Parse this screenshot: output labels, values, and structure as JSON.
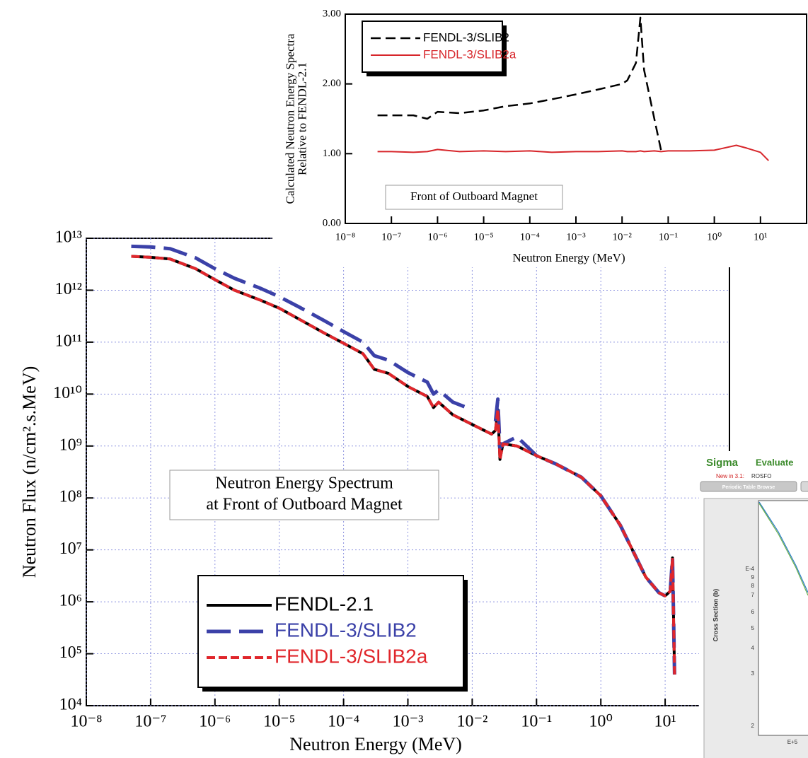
{
  "chart_data": [
    {
      "type": "line",
      "log_x": true,
      "log_y": false,
      "ylabel": [
        "Calculated Neutron Energy Spectra",
        "Relative to FENDL-2.1"
      ],
      "xlabel": "Neutron Energy (MeV)",
      "annotation": [
        "Front of Outboard Magnet"
      ],
      "legend": "upper-left",
      "grid": false,
      "xlim": [
        1e-08,
        100
      ],
      "ylim": [
        0,
        3
      ],
      "xticks": [
        {
          "value": 1e-08,
          "label": "10⁻⁸"
        },
        {
          "value": 1e-07,
          "label": "10⁻⁷"
        },
        {
          "value": 1e-06,
          "label": "10⁻⁶"
        },
        {
          "value": 1e-05,
          "label": "10⁻⁵"
        },
        {
          "value": 0.0001,
          "label": "10⁻⁴"
        },
        {
          "value": 0.001,
          "label": "10⁻³"
        },
        {
          "value": 0.01,
          "label": "10⁻²"
        },
        {
          "value": 0.1,
          "label": "10⁻¹"
        },
        {
          "value": 1,
          "label": "10⁰"
        },
        {
          "value": 10,
          "label": "10¹"
        }
      ],
      "yticks": [
        {
          "value": 0,
          "label": "0.00"
        },
        {
          "value": 1,
          "label": "1.00"
        },
        {
          "value": 2,
          "label": "2.00"
        },
        {
          "value": 3,
          "label": "3.00"
        }
      ],
      "x": [
        5e-08,
        1e-07,
        3e-07,
        6e-07,
        1e-06,
        3e-06,
        1e-05,
        3e-05,
        0.0001,
        0.0003,
        0.001,
        0.003,
        0.01,
        0.013,
        0.02,
        0.025,
        0.03,
        0.05,
        0.07,
        0.1,
        0.3,
        1,
        3,
        5,
        10,
        15
      ],
      "series": [
        {
          "name": "FENDL-3/SLIB2",
          "color": "#000000",
          "dash": "dashed",
          "values": [
            1.55,
            1.55,
            1.55,
            1.5,
            1.6,
            1.58,
            1.62,
            1.68,
            1.72,
            1.78,
            1.85,
            1.92,
            2.0,
            2.05,
            2.3,
            2.95,
            2.2,
            1.5,
            1.05,
            null,
            null,
            null,
            null,
            null,
            null,
            null
          ]
        },
        {
          "name": "FENDL-3/SLIB2a",
          "color": "#d7262b",
          "dash": "solid",
          "values": [
            1.03,
            1.03,
            1.02,
            1.03,
            1.06,
            1.03,
            1.04,
            1.03,
            1.04,
            1.02,
            1.03,
            1.03,
            1.04,
            1.03,
            1.03,
            1.04,
            1.03,
            1.04,
            1.03,
            1.04,
            1.04,
            1.05,
            1.12,
            1.08,
            1.02,
            0.9
          ]
        }
      ]
    },
    {
      "type": "line",
      "log_x": true,
      "log_y": true,
      "ylabel": [
        "Neutron Flux (n/cm².s.MeV)"
      ],
      "xlabel": "Neutron Energy (MeV)",
      "annotation": [
        "Neutron Energy Spectrum",
        "at Front of Outboard Magnet"
      ],
      "legend": "lower-left",
      "grid": true,
      "xlim": [
        1e-08,
        100
      ],
      "ylim": [
        10000.0,
        10000000000000.0
      ],
      "xticks": [
        {
          "value": 1e-08,
          "label": "10⁻⁸"
        },
        {
          "value": 1e-07,
          "label": "10⁻⁷"
        },
        {
          "value": 1e-06,
          "label": "10⁻⁶"
        },
        {
          "value": 1e-05,
          "label": "10⁻⁵"
        },
        {
          "value": 0.0001,
          "label": "10⁻⁴"
        },
        {
          "value": 0.001,
          "label": "10⁻³"
        },
        {
          "value": 0.01,
          "label": "10⁻²"
        },
        {
          "value": 0.1,
          "label": "10⁻¹"
        },
        {
          "value": 1,
          "label": "10⁰"
        },
        {
          "value": 10,
          "label": "10¹"
        }
      ],
      "yticks": [
        {
          "value": 10000.0,
          "label": "10⁴"
        },
        {
          "value": 100000.0,
          "label": "10⁵"
        },
        {
          "value": 1000000.0,
          "label": "10⁶"
        },
        {
          "value": 10000000.0,
          "label": "10⁷"
        },
        {
          "value": 100000000.0,
          "label": "10⁸"
        },
        {
          "value": 1000000000.0,
          "label": "10⁹"
        },
        {
          "value": 10000000000.0,
          "label": "10¹⁰"
        },
        {
          "value": 100000000000.0,
          "label": "10¹¹"
        },
        {
          "value": 1000000000000.0,
          "label": "10¹²"
        },
        {
          "value": 10000000000000.0,
          "label": "10¹³"
        }
      ],
      "x": [
        5e-08,
        1e-07,
        2e-07,
        5e-07,
        1e-06,
        2e-06,
        5e-06,
        1e-05,
        2e-05,
        5e-05,
        0.0001,
        0.0002,
        0.0003,
        0.0005,
        0.001,
        0.002,
        0.0025,
        0.003,
        0.005,
        0.01,
        0.02,
        0.023,
        0.025,
        0.027,
        0.03,
        0.05,
        0.1,
        0.2,
        0.5,
        1,
        2,
        5,
        8,
        10,
        12,
        13,
        14
      ],
      "series": [
        {
          "name": "FENDL-2.1",
          "color": "#000000",
          "dash": "solid",
          "values": [
            4500000000000.0,
            4300000000000.0,
            4000000000000.0,
            2600000000000.0,
            1600000000000.0,
            1000000000000.0,
            650000000000.0,
            450000000000.0,
            280000000000.0,
            150000000000.0,
            95000000000.0,
            60000000000.0,
            30000000000.0,
            25000000000.0,
            14000000000.0,
            9000000000.0,
            5500000000.0,
            7000000000.0,
            4000000000.0,
            2600000000.0,
            1700000000.0,
            2000000000.0,
            5000000000.0,
            550000000.0,
            1100000000.0,
            1000000000.0,
            650000000.0,
            450000000.0,
            250000000.0,
            110000000.0,
            30000000.0,
            3000000.0,
            1500000.0,
            1300000.0,
            1600000.0,
            7000000.0,
            40000.0
          ]
        },
        {
          "name": "FENDL-3/SLIB2",
          "color": "#3b41a8",
          "dash": "long-dash",
          "values": [
            7000000000000.0,
            6800000000000.0,
            6300000000000.0,
            4200000000000.0,
            2600000000000.0,
            1700000000000.0,
            1100000000000.0,
            750000000000.0,
            480000000000.0,
            260000000000.0,
            160000000000.0,
            100000000000.0,
            55000000000.0,
            45000000000.0,
            26000000000.0,
            17000000000.0,
            10000000000.0,
            12000000000.0,
            7000000000.0,
            5000000000.0,
            null,
            3000000000.0,
            8000000000.0,
            900000000.0,
            1100000000.0,
            1500000000.0,
            650000000.0,
            450000000.0,
            250000000.0,
            110000000.0,
            30000000.0,
            3000000.0,
            1500000.0,
            1300000.0,
            1600000.0,
            7000000.0,
            40000.0
          ]
        },
        {
          "name": "FENDL-3/SLIB2a",
          "color": "#e0262b",
          "dash": "short-dash",
          "values": [
            4500000000000.0,
            4300000000000.0,
            4000000000000.0,
            2600000000000.0,
            1600000000000.0,
            1000000000000.0,
            650000000000.0,
            450000000000.0,
            280000000000.0,
            150000000000.0,
            95000000000.0,
            60000000000.0,
            30000000000.0,
            25000000000.0,
            14000000000.0,
            9000000000.0,
            5500000000.0,
            7000000000.0,
            4000000000.0,
            2600000000.0,
            1700000000.0,
            2000000000.0,
            5000000000.0,
            550000000.0,
            1100000000.0,
            1000000000.0,
            650000000.0,
            450000000.0,
            250000000.0,
            110000000.0,
            30000000.0,
            3000000.0,
            1500000.0,
            1300000.0,
            1600000.0,
            7000000.0,
            40000.0
          ]
        }
      ]
    }
  ],
  "sigma_panel": {
    "logo": "Sigma",
    "title": "Evaluate",
    "news_label": "New in 3.1:",
    "news": "ROSFO",
    "tab": "Periodic Table Browse",
    "ylabel": "Cross Section (b)",
    "ytick_labels": [
      "E-4",
      "9",
      "8",
      "7",
      "6",
      "5",
      "4",
      "3",
      "2"
    ],
    "xtick_labels": [
      "E+5"
    ]
  }
}
